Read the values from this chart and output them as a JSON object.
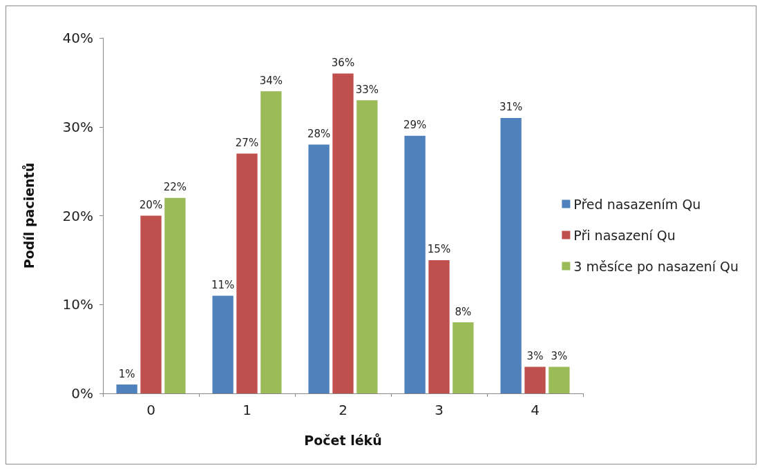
{
  "chart_data": {
    "type": "bar",
    "xlabel": "Počet léků",
    "ylabel": "Podíl pacientů",
    "categories": [
      "0",
      "1",
      "2",
      "3",
      "4"
    ],
    "series": [
      {
        "name": "Před nasazením Qu",
        "color": "#4f81bd",
        "values": [
          1,
          11,
          28,
          29,
          31
        ],
        "value_labels": [
          "1%",
          "11%",
          "28%",
          "29%",
          "31%"
        ]
      },
      {
        "name": "Při nasazení Qu",
        "color": "#c0504d",
        "values": [
          20,
          27,
          36,
          15,
          3
        ],
        "value_labels": [
          "20%",
          "27%",
          "36%",
          "15%",
          "3%"
        ]
      },
      {
        "name": "3 měsíce po nasazení Qu",
        "color": "#9bbb59",
        "values": [
          22,
          34,
          33,
          8,
          3
        ],
        "value_labels": [
          "22%",
          "34%",
          "33%",
          "8%",
          "3%"
        ]
      }
    ],
    "ylim": [
      0,
      40
    ],
    "yticks": [
      {
        "value": 0,
        "label": "0%"
      },
      {
        "value": 10,
        "label": "10%"
      },
      {
        "value": 20,
        "label": "20%"
      },
      {
        "value": 30,
        "label": "30%"
      },
      {
        "value": 40,
        "label": "40%"
      }
    ],
    "grid": false,
    "legend": "right"
  }
}
